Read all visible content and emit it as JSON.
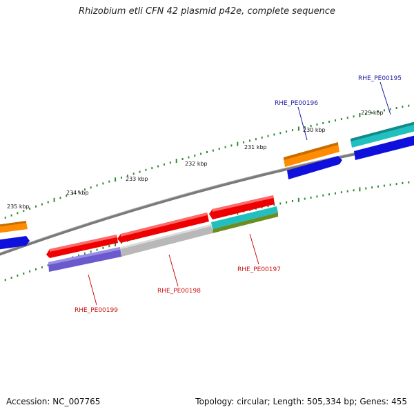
{
  "title": "Rhizobium etli CFN 42 plasmid p42e, complete sequence",
  "footer": {
    "accession": "Accession: NC_007765",
    "summary": "Topology: circular; Length: 505,334 bp; Genes: 455"
  },
  "scale_labels": [
    "235 kbp",
    "234 kbp",
    "233 kbp",
    "232 kbp",
    "231 kbp",
    "230 kbp",
    "229 kbp"
  ],
  "gene_labels": [
    {
      "text": "RHE_PE00195",
      "color": "#1a1aa6"
    },
    {
      "text": "RHE_PE00196",
      "color": "#1a1aa6"
    },
    {
      "text": "RHE_PE00197",
      "color": "#cc1111"
    },
    {
      "text": "RHE_PE00198",
      "color": "#cc1111"
    },
    {
      "text": "RHE_PE00199",
      "color": "#cc1111"
    }
  ],
  "colors": {
    "backbone": "#808080",
    "tick": "#2e8b2e",
    "cds_red": "#ee0000",
    "cds_blue": "#1010dd",
    "cds_orange": "#ff8c00",
    "cds_cyan": "#20c0c0",
    "cds_gray": "#b8b8b8",
    "cds_slate": "#6a5acd",
    "cds_olive": "#6b8e23"
  }
}
